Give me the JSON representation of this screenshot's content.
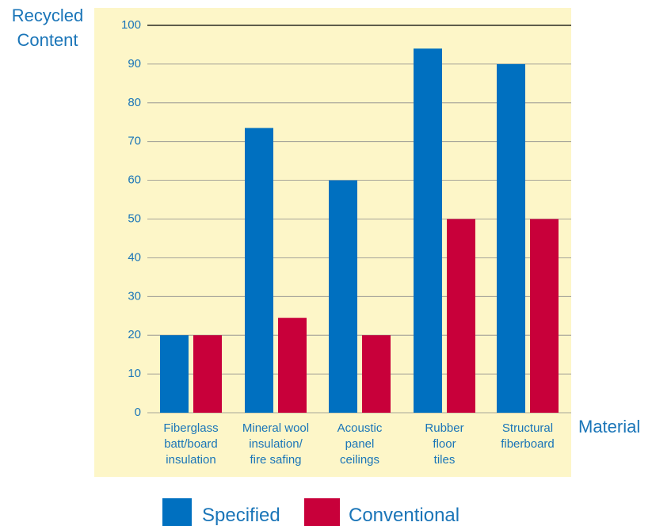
{
  "chart_data": {
    "type": "bar",
    "ylabel_lines": [
      "Recycled",
      "Content"
    ],
    "xlabel": "Material",
    "ylim": [
      0,
      100
    ],
    "yticks": [
      0,
      10,
      20,
      30,
      40,
      50,
      60,
      70,
      80,
      90,
      100
    ],
    "grid": true,
    "legend_position": "bottom",
    "categories": [
      [
        "Fiberglass",
        "batt/board",
        "insulation"
      ],
      [
        "Mineral wool",
        "insulation/",
        "fire safing"
      ],
      [
        "Acoustic",
        "panel",
        "ceilings"
      ],
      [
        "Rubber",
        "floor",
        "tiles"
      ],
      [
        "Structural",
        "fiberboard"
      ]
    ],
    "series": [
      {
        "name": "Specified",
        "color": "#0070c0",
        "values": [
          20,
          73.5,
          60,
          94,
          90
        ]
      },
      {
        "name": "Conventional",
        "color": "#c8003a",
        "values": [
          20,
          24.5,
          20,
          50,
          50
        ]
      }
    ],
    "colors": {
      "panel": "#fdf6c8",
      "text": "#1a75b8",
      "grid": "#000000"
    }
  }
}
